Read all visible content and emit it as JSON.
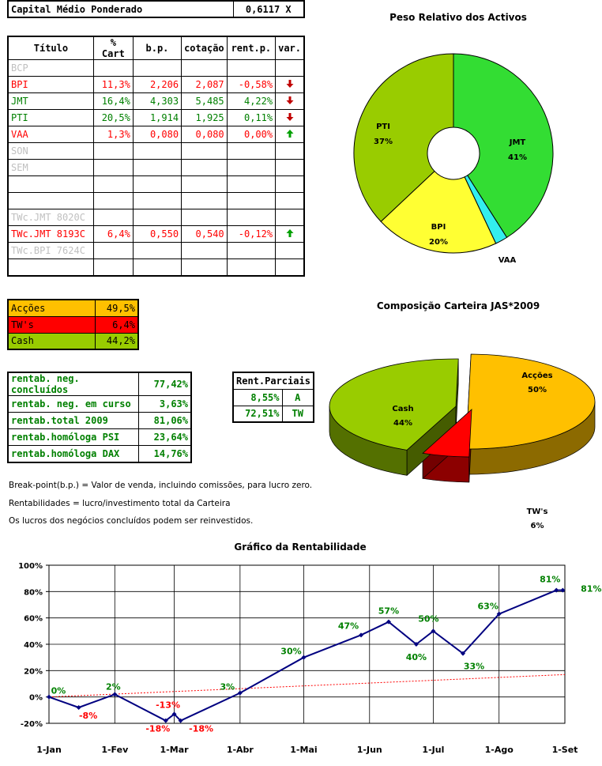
{
  "capital": {
    "label": "Capital Médio Ponderado",
    "value": "0,6117 X"
  },
  "portfolio": {
    "headers": [
      "Título",
      "% Cart",
      "b.p.",
      "cotação",
      "rent.p.",
      "var."
    ],
    "rows": [
      {
        "title": "BCP",
        "cart": "",
        "bp": "",
        "cot": "",
        "rent": "",
        "var": "",
        "style": "grey"
      },
      {
        "title": "BPI",
        "cart": "11,3%",
        "bp": "2,206",
        "cot": "2,087",
        "rent": "-0,58%",
        "var": "down",
        "style": "red"
      },
      {
        "title": "JMT",
        "cart": "16,4%",
        "bp": "4,303",
        "cot": "5,485",
        "rent": "4,22%",
        "var": "down",
        "style": "green"
      },
      {
        "title": "PTI",
        "cart": "20,5%",
        "bp": "1,914",
        "cot": "1,925",
        "rent": "0,11%",
        "var": "down",
        "style": "green"
      },
      {
        "title": "VAA",
        "cart": "1,3%",
        "bp": "0,080",
        "cot": "0,080",
        "rent": "0,00%",
        "var": "up",
        "style": "red"
      },
      {
        "title": "SON",
        "cart": "",
        "bp": "",
        "cot": "",
        "rent": "",
        "var": "",
        "style": "grey"
      },
      {
        "title": "SEM",
        "cart": "",
        "bp": "",
        "cot": "",
        "rent": "",
        "var": "",
        "style": "grey"
      },
      {
        "title": "",
        "cart": "",
        "bp": "",
        "cot": "",
        "rent": "",
        "var": "",
        "style": "grey"
      },
      {
        "title": "",
        "cart": "",
        "bp": "",
        "cot": "",
        "rent": "",
        "var": "",
        "style": "grey"
      },
      {
        "title": "TWc.JMT 8020C",
        "cart": "",
        "bp": "",
        "cot": "",
        "rent": "",
        "var": "",
        "style": "grey"
      },
      {
        "title": "TWc.JMT 8193C",
        "cart": "6,4%",
        "bp": "0,550",
        "cot": "0,540",
        "rent": "-0,12%",
        "var": "up",
        "style": "red"
      },
      {
        "title": "TWc.BPI 7624C",
        "cart": "",
        "bp": "",
        "cot": "",
        "rent": "",
        "var": "",
        "style": "grey"
      },
      {
        "title": "",
        "cart": "",
        "bp": "",
        "cot": "",
        "rent": "",
        "var": "",
        "style": "grey"
      }
    ]
  },
  "allocation": [
    {
      "label": "Acções",
      "value": "49,5%",
      "color": "#ffc000"
    },
    {
      "label": "TW's",
      "value": "6,4%",
      "color": "#ff0000"
    },
    {
      "label": "Cash",
      "value": "44,2%",
      "color": "#99cc00"
    }
  ],
  "returns": [
    {
      "label": "rentab. neg. concluídos",
      "value": "77,42%"
    },
    {
      "label": "rentab. neg. em curso",
      "value": "3,63%"
    },
    {
      "label": "rentab.total 2009",
      "value": "81,06%"
    },
    {
      "label": "rentab.homóloga PSI",
      "value": "23,64%"
    },
    {
      "label": "rentab.homóloga DAX",
      "value": "14,76%"
    }
  ],
  "partials": {
    "header": "Rent.Parciais",
    "rows": [
      {
        "value": "8,55%",
        "tag": "A"
      },
      {
        "value": "72,51%",
        "tag": "TW"
      }
    ]
  },
  "notes": [
    "Break-point(b.p.) = Valor de venda, incluindo comissões, para lucro zero.",
    "Rentabilidades = lucro/investimento total da Carteira",
    "Os lucros dos negócios concluídos podem ser reinvestidos."
  ],
  "colors": {
    "up_arrow": "#00a000",
    "down_arrow": "#c00000",
    "line": "#000080",
    "trend": "#ff0000"
  },
  "chart_data": [
    {
      "type": "pie",
      "subtype": "doughnut",
      "title": "Peso Relativo dos Activos",
      "slices": [
        {
          "label": "JMT",
          "value": 41,
          "text": "41%",
          "color": "#33dd33"
        },
        {
          "label": "VAA",
          "value": 2,
          "text": "2%",
          "color": "#33eeee"
        },
        {
          "label": "BPI",
          "value": 20,
          "text": "20%",
          "color": "#ffff33"
        },
        {
          "label": "PTI",
          "value": 37,
          "text": "37%",
          "color": "#99cc00"
        }
      ]
    },
    {
      "type": "pie",
      "subtype": "3d-exploded",
      "title": "Composição Carteira JAS*2009",
      "slices": [
        {
          "label": "Acções",
          "value": 50,
          "text": "50%",
          "color": "#ffc000"
        },
        {
          "label": "TW's",
          "value": 6,
          "text": "6%",
          "color": "#ff0000"
        },
        {
          "label": "Cash",
          "value": 44,
          "text": "44%",
          "color": "#99cc00"
        }
      ]
    },
    {
      "type": "line",
      "title": "Gráfico da Rentabilidade",
      "x_ticks": [
        "1-Jan",
        "1-Fev",
        "1-Mar",
        "1-Abr",
        "1-Mai",
        "1-Jun",
        "1-Jul",
        "1-Ago",
        "1-Set"
      ],
      "y_ticks": [
        "100%",
        "80%",
        "60%",
        "40%",
        "20%",
        "0%",
        "-20%"
      ],
      "ylim": [
        -20,
        100
      ],
      "grid": true,
      "series": [
        {
          "points": [
            {
              "x": "2009-01-01",
              "y": 0
            },
            {
              "x": "2009-01-15",
              "y": -8
            },
            {
              "x": "2009-02-01",
              "y": 2
            },
            {
              "x": "2009-02-25",
              "y": -18
            },
            {
              "x": "2009-03-01",
              "y": -13
            },
            {
              "x": "2009-03-04",
              "y": -18
            },
            {
              "x": "2009-04-01",
              "y": 3
            },
            {
              "x": "2009-05-01",
              "y": 30
            },
            {
              "x": "2009-05-28",
              "y": 47
            },
            {
              "x": "2009-06-10",
              "y": 57
            },
            {
              "x": "2009-06-23",
              "y": 40
            },
            {
              "x": "2009-07-01",
              "y": 50
            },
            {
              "x": "2009-07-15",
              "y": 33
            },
            {
              "x": "2009-08-01",
              "y": 63
            },
            {
              "x": "2009-08-28",
              "y": 81
            },
            {
              "x": "2009-08-31",
              "y": 81
            }
          ]
        },
        {
          "style": "dashed",
          "points": [
            {
              "x": "2009-01-01",
              "y": 0
            },
            {
              "x": "2009-09-01",
              "y": 17
            }
          ]
        }
      ],
      "data_labels": [
        {
          "x": "2009-01-01",
          "y": 0,
          "text": "0%",
          "color": "green"
        },
        {
          "x": "2009-01-15",
          "y": -8,
          "text": "-8%",
          "color": "red"
        },
        {
          "x": "2009-02-01",
          "y": 2,
          "text": "2%",
          "color": "green"
        },
        {
          "x": "2009-02-25",
          "y": -18,
          "text": "-18%",
          "color": "red"
        },
        {
          "x": "2009-03-01",
          "y": -13,
          "text": "-13%",
          "color": "red"
        },
        {
          "x": "2009-03-04",
          "y": -18,
          "text": "-18%",
          "color": "red"
        },
        {
          "x": "2009-04-01",
          "y": 3,
          "text": "3%",
          "color": "green"
        },
        {
          "x": "2009-05-01",
          "y": 30,
          "text": "30%",
          "color": "green"
        },
        {
          "x": "2009-05-28",
          "y": 47,
          "text": "47%",
          "color": "green"
        },
        {
          "x": "2009-06-10",
          "y": 57,
          "text": "57%",
          "color": "green"
        },
        {
          "x": "2009-06-23",
          "y": 40,
          "text": "40%",
          "color": "green"
        },
        {
          "x": "2009-07-01",
          "y": 50,
          "text": "50%",
          "color": "green"
        },
        {
          "x": "2009-07-15",
          "y": 33,
          "text": "33%",
          "color": "green"
        },
        {
          "x": "2009-08-01",
          "y": 63,
          "text": "63%",
          "color": "green"
        },
        {
          "x": "2009-08-28",
          "y": 81,
          "text": "81%",
          "color": "green"
        },
        {
          "x": "2009-08-31",
          "y": 81,
          "text": "81%",
          "color": "green"
        }
      ]
    }
  ]
}
